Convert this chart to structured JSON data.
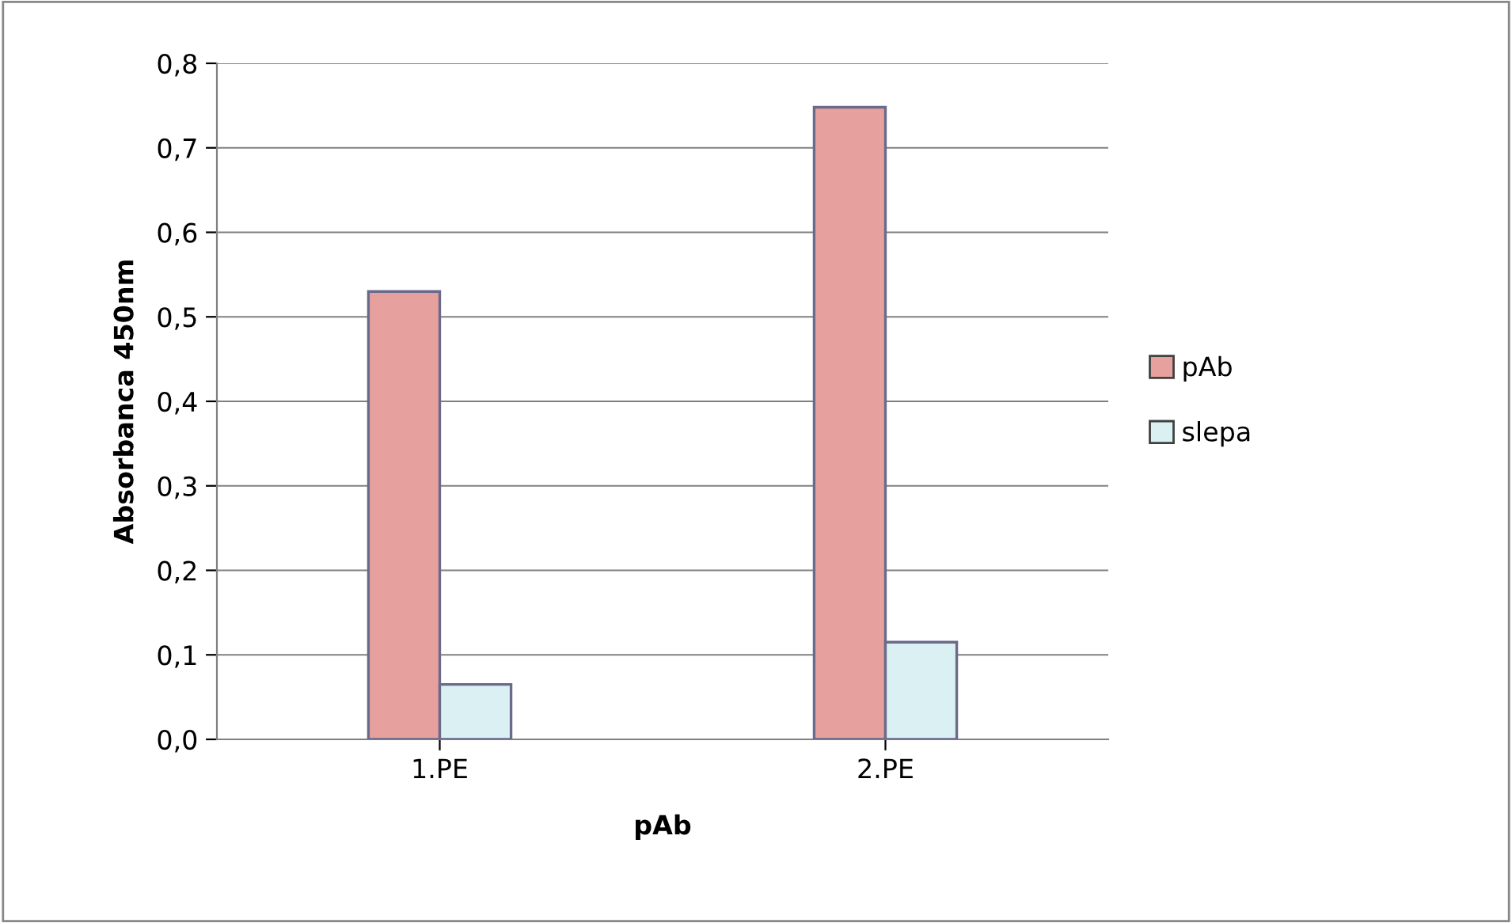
{
  "chart_data": {
    "type": "bar",
    "xlabel": "pAb",
    "ylabel": "Absorbanca 450nm",
    "categories": [
      "1.PE",
      "2.PE"
    ],
    "series": [
      {
        "name": "pAb",
        "color": "#e6a09e",
        "values": [
          0.53,
          0.748
        ]
      },
      {
        "name": "slepa",
        "color": "#dbf0f2",
        "values": [
          0.065,
          0.115
        ]
      }
    ],
    "ylim": [
      0,
      0.8
    ],
    "yticks": [
      {
        "value": 0,
        "label": "0,0"
      },
      {
        "value": 0.1,
        "label": "0,1"
      },
      {
        "value": 0.2,
        "label": "0,2"
      },
      {
        "value": 0.3,
        "label": "0,3"
      },
      {
        "value": 0.4,
        "label": "0,4"
      },
      {
        "value": 0.5,
        "label": "0,5"
      },
      {
        "value": 0.6,
        "label": "0,6"
      },
      {
        "value": 0.7,
        "label": "0,7"
      },
      {
        "value": 0.8,
        "label": "0,8"
      }
    ],
    "grid": "y",
    "legend": "right"
  }
}
